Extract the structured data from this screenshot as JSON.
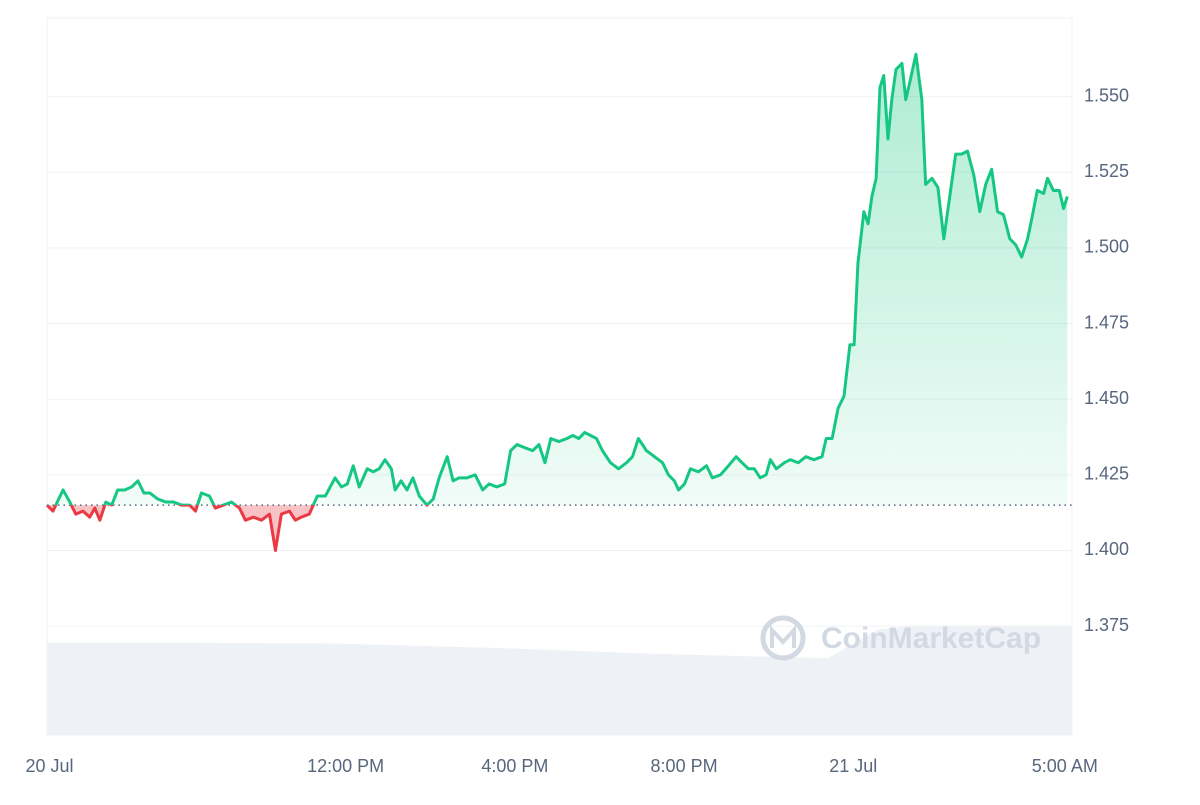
{
  "chart_data": {
    "type": "line",
    "watermark": "CoinMarketCap",
    "x": [
      4.94,
      5.08,
      5.32,
      5.48,
      5.62,
      5.79,
      5.95,
      6.07,
      6.19,
      6.33,
      6.47,
      6.61,
      6.78,
      6.94,
      7.09,
      7.23,
      7.37,
      7.56,
      7.75,
      7.93,
      8.12,
      8.31,
      8.45,
      8.59,
      8.78,
      8.92,
      9.11,
      9.3,
      9.49,
      9.63,
      9.82,
      10.01,
      10.2,
      10.34,
      10.48,
      10.67,
      10.81,
      10.95,
      11.14,
      11.33,
      11.52,
      11.75,
      11.9,
      12.04,
      12.18,
      12.32,
      12.51,
      12.65,
      12.79,
      12.93,
      13.08,
      13.17,
      13.31,
      13.45,
      13.59,
      13.74,
      13.92,
      14.07,
      14.21,
      14.4,
      14.54,
      14.68,
      14.87,
      15.06,
      15.24,
      15.39,
      15.57,
      15.76,
      15.9,
      16.05,
      16.23,
      16.42,
      16.57,
      16.71,
      16.85,
      17.04,
      17.23,
      17.37,
      17.51,
      17.65,
      17.79,
      17.93,
      18.07,
      18.26,
      18.45,
      18.64,
      18.78,
      18.92,
      19.11,
      19.3,
      19.49,
      19.63,
      19.77,
      19.87,
      20.01,
      20.15,
      20.34,
      20.53,
      20.67,
      20.86,
      21.05,
      21.23,
      21.37,
      21.52,
      21.66,
      21.8,
      21.94,
      22.04,
      22.18,
      22.37,
      22.51,
      22.7,
      22.88,
      23.07,
      23.26,
      23.36,
      23.5,
      23.64,
      23.78,
      23.92,
      24.02,
      24.11,
      24.25,
      24.35,
      24.44,
      24.54,
      24.63,
      24.72,
      24.82,
      24.91,
      25.01,
      25.15,
      25.24,
      25.34,
      25.48,
      25.62,
      25.71,
      25.86,
      26.0,
      26.14,
      26.28,
      26.42,
      26.56,
      26.7,
      26.85,
      26.99,
      27.13,
      27.27,
      27.41,
      27.55,
      27.7,
      27.84,
      27.98,
      28.12,
      28.21,
      28.35,
      28.5,
      28.59,
      28.73,
      28.87,
      28.97,
      29.06
    ],
    "values": [
      1.415,
      1.413,
      1.42,
      1.416,
      1.412,
      1.413,
      1.411,
      1.414,
      1.41,
      1.416,
      1.415,
      1.42,
      1.42,
      1.421,
      1.423,
      1.419,
      1.419,
      1.417,
      1.416,
      1.416,
      1.415,
      1.415,
      1.413,
      1.419,
      1.418,
      1.414,
      1.415,
      1.416,
      1.414,
      1.41,
      1.411,
      1.41,
      1.412,
      1.4,
      1.412,
      1.413,
      1.41,
      1.411,
      1.412,
      1.418,
      1.418,
      1.424,
      1.421,
      1.422,
      1.428,
      1.421,
      1.427,
      1.426,
      1.427,
      1.43,
      1.427,
      1.42,
      1.423,
      1.42,
      1.424,
      1.418,
      1.415,
      1.417,
      1.424,
      1.431,
      1.423,
      1.424,
      1.424,
      1.425,
      1.42,
      1.422,
      1.421,
      1.422,
      1.433,
      1.435,
      1.434,
      1.433,
      1.435,
      1.429,
      1.437,
      1.436,
      1.437,
      1.438,
      1.437,
      1.439,
      1.438,
      1.437,
      1.433,
      1.429,
      1.427,
      1.429,
      1.431,
      1.437,
      1.433,
      1.431,
      1.429,
      1.425,
      1.423,
      1.42,
      1.422,
      1.427,
      1.426,
      1.428,
      1.424,
      1.425,
      1.428,
      1.431,
      1.429,
      1.427,
      1.427,
      1.424,
      1.425,
      1.43,
      1.427,
      1.429,
      1.43,
      1.429,
      1.431,
      1.43,
      1.431,
      1.437,
      1.437,
      1.447,
      1.451,
      1.468,
      1.468,
      1.495,
      1.512,
      1.508,
      1.517,
      1.523,
      1.553,
      1.557,
      1.536,
      1.549,
      1.559,
      1.561,
      1.549,
      1.555,
      1.564,
      1.549,
      1.521,
      1.523,
      1.52,
      1.503,
      1.517,
      1.531,
      1.531,
      1.532,
      1.524,
      1.512,
      1.521,
      1.526,
      1.512,
      1.511,
      1.503,
      1.501,
      1.497,
      1.503,
      1.509,
      1.519,
      1.518,
      1.523,
      1.519,
      1.519,
      1.513,
      1.517
    ],
    "baseline": 1.415,
    "colors": {
      "up": "#16c784",
      "down": "#ea3943",
      "volume": "#eef1f6"
    },
    "volume": {
      "x": [
        4.94,
        8.0,
        12.0,
        16.0,
        19.0,
        21.0,
        23.4,
        24.6,
        25.5,
        29.17
      ],
      "values": [
        77,
        77,
        76,
        72,
        68,
        66,
        64,
        88,
        91,
        91
      ],
      "ylim": [
        0,
        100
      ]
    },
    "xlim": [
      4.94,
      29.17
    ],
    "xticks": [
      {
        "value": 5,
        "label": "20 Jul"
      },
      {
        "value": 12,
        "label": "12:00 PM"
      },
      {
        "value": 16,
        "label": "4:00 PM"
      },
      {
        "value": 20,
        "label": "8:00 PM"
      },
      {
        "value": 24,
        "label": "21 Jul"
      },
      {
        "value": 29,
        "label": "5:00 AM"
      }
    ],
    "ylim": [
      1.339,
      1.576
    ],
    "yticks": [
      1.375,
      {
        "value": 1.4,
        "label": "1.400"
      },
      1.425,
      {
        "value": 1.45,
        "label": "1.450"
      },
      1.475,
      {
        "value": 1.5,
        "label": "1.500"
      },
      1.525,
      {
        "value": 1.55,
        "label": "1.550"
      }
    ],
    "grid": true
  }
}
